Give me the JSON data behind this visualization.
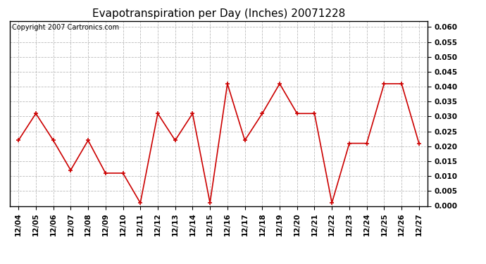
{
  "title": "Evapotranspiration per Day (Inches) 20071228",
  "copyright_text": "Copyright 2007 Cartronics.com",
  "x_labels": [
    "12/04",
    "12/05",
    "12/06",
    "12/07",
    "12/08",
    "12/09",
    "12/10",
    "12/11",
    "12/12",
    "12/13",
    "12/14",
    "12/15",
    "12/16",
    "12/17",
    "12/18",
    "12/19",
    "12/20",
    "12/21",
    "12/22",
    "12/23",
    "12/24",
    "12/25",
    "12/26",
    "12/27"
  ],
  "y_values": [
    0.022,
    0.031,
    0.022,
    0.012,
    0.022,
    0.011,
    0.011,
    0.001,
    0.031,
    0.022,
    0.031,
    0.001,
    0.041,
    0.022,
    0.031,
    0.041,
    0.031,
    0.031,
    0.001,
    0.021,
    0.021,
    0.041,
    0.041,
    0.021
  ],
  "line_color": "#cc0000",
  "marker": "+",
  "marker_size": 5,
  "ylim": [
    0.0,
    0.062
  ],
  "yticks": [
    0.0,
    0.005,
    0.01,
    0.015,
    0.02,
    0.025,
    0.03,
    0.035,
    0.04,
    0.045,
    0.05,
    0.055,
    0.06
  ],
  "background_color": "#ffffff",
  "grid_color": "#bbbbbb",
  "title_fontsize": 11,
  "copyright_fontsize": 7,
  "tick_fontsize": 7.5,
  "fig_width": 6.9,
  "fig_height": 3.75
}
